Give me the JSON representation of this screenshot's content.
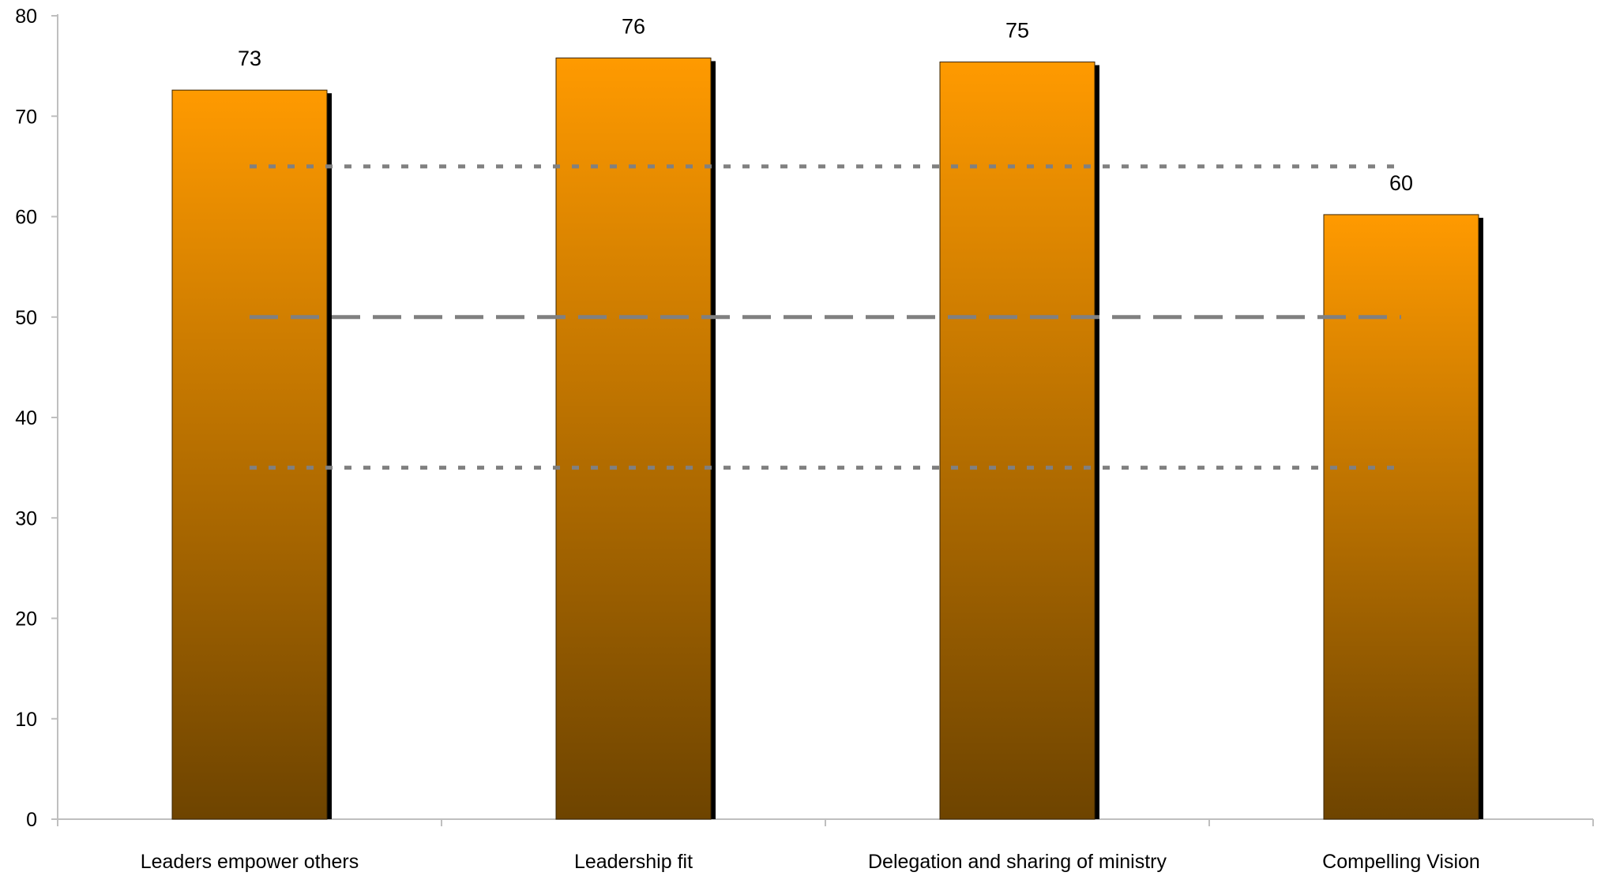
{
  "chart_data": {
    "type": "bar",
    "title": "",
    "xlabel": "",
    "ylabel": "",
    "categories": [
      "Leaders empower others",
      "Leadership fit",
      "Delegation and sharing of ministry",
      "Compelling Vision"
    ],
    "values": [
      72.6,
      75.8,
      75.4,
      60.2
    ],
    "data_labels": [
      "73",
      "76",
      "75",
      "60"
    ],
    "ylim": [
      0,
      80
    ],
    "yticks": [
      0,
      10,
      20,
      30,
      40,
      50,
      60,
      70,
      80
    ],
    "reference_lines": [
      {
        "value": 65,
        "style": "dotted"
      },
      {
        "value": 50,
        "style": "dashed"
      },
      {
        "value": 35,
        "style": "dotted"
      }
    ],
    "grid": false,
    "legend": "none",
    "colors": {
      "bar_top": "#ff9a00",
      "bar_bottom": "#6e4400",
      "bar_shadow": "#000000",
      "reference_line": "#808080",
      "axis": "#bfbfbf"
    }
  }
}
